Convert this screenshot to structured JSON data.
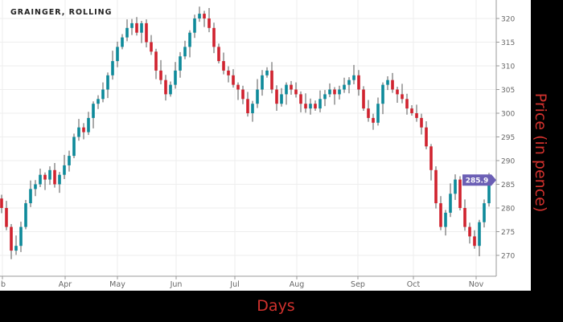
{
  "chart_data": {
    "type": "candlestick",
    "title": "GRAINGER, ROLLING",
    "xlabel": "Days",
    "ylabel": "Price (in pence)",
    "x_tick_labels": [
      "b",
      "Apr",
      "May",
      "Jun",
      "Jul",
      "Aug",
      "Sep",
      "Oct",
      "Nov"
    ],
    "y_ticks": [
      270,
      275,
      280,
      285,
      290,
      295,
      300,
      305,
      310,
      315,
      320
    ],
    "ylim": [
      265.5,
      323.9
    ],
    "last_price_label": "285.9",
    "closes": [
      280,
      276,
      271,
      272,
      276,
      281,
      284,
      285,
      287,
      286,
      288,
      285,
      287,
      289,
      291,
      295,
      297,
      296,
      299,
      302,
      303,
      305,
      308,
      311,
      314,
      316,
      318,
      319,
      317,
      319,
      315,
      313,
      309,
      307,
      304,
      306,
      309,
      312,
      314,
      317,
      320,
      321,
      320,
      318,
      314,
      311,
      309,
      308,
      306,
      305,
      303,
      300,
      302,
      305,
      308,
      309,
      305,
      302,
      304,
      306,
      305,
      304,
      302,
      301,
      302,
      301,
      303,
      304,
      305,
      304,
      305,
      306,
      307,
      308,
      305,
      301,
      299,
      298,
      302,
      306,
      307,
      305,
      304,
      303,
      301,
      300,
      299,
      297,
      293,
      288,
      281,
      276,
      279,
      283,
      286,
      280,
      276,
      274,
      272,
      277,
      281,
      285.9
    ],
    "first_open": 282,
    "colors": {
      "up": "#0e8a9a",
      "down": "#d0232f",
      "wick": "#555555",
      "label": "#6b5fb5",
      "axis_title": "#d0312d"
    }
  }
}
